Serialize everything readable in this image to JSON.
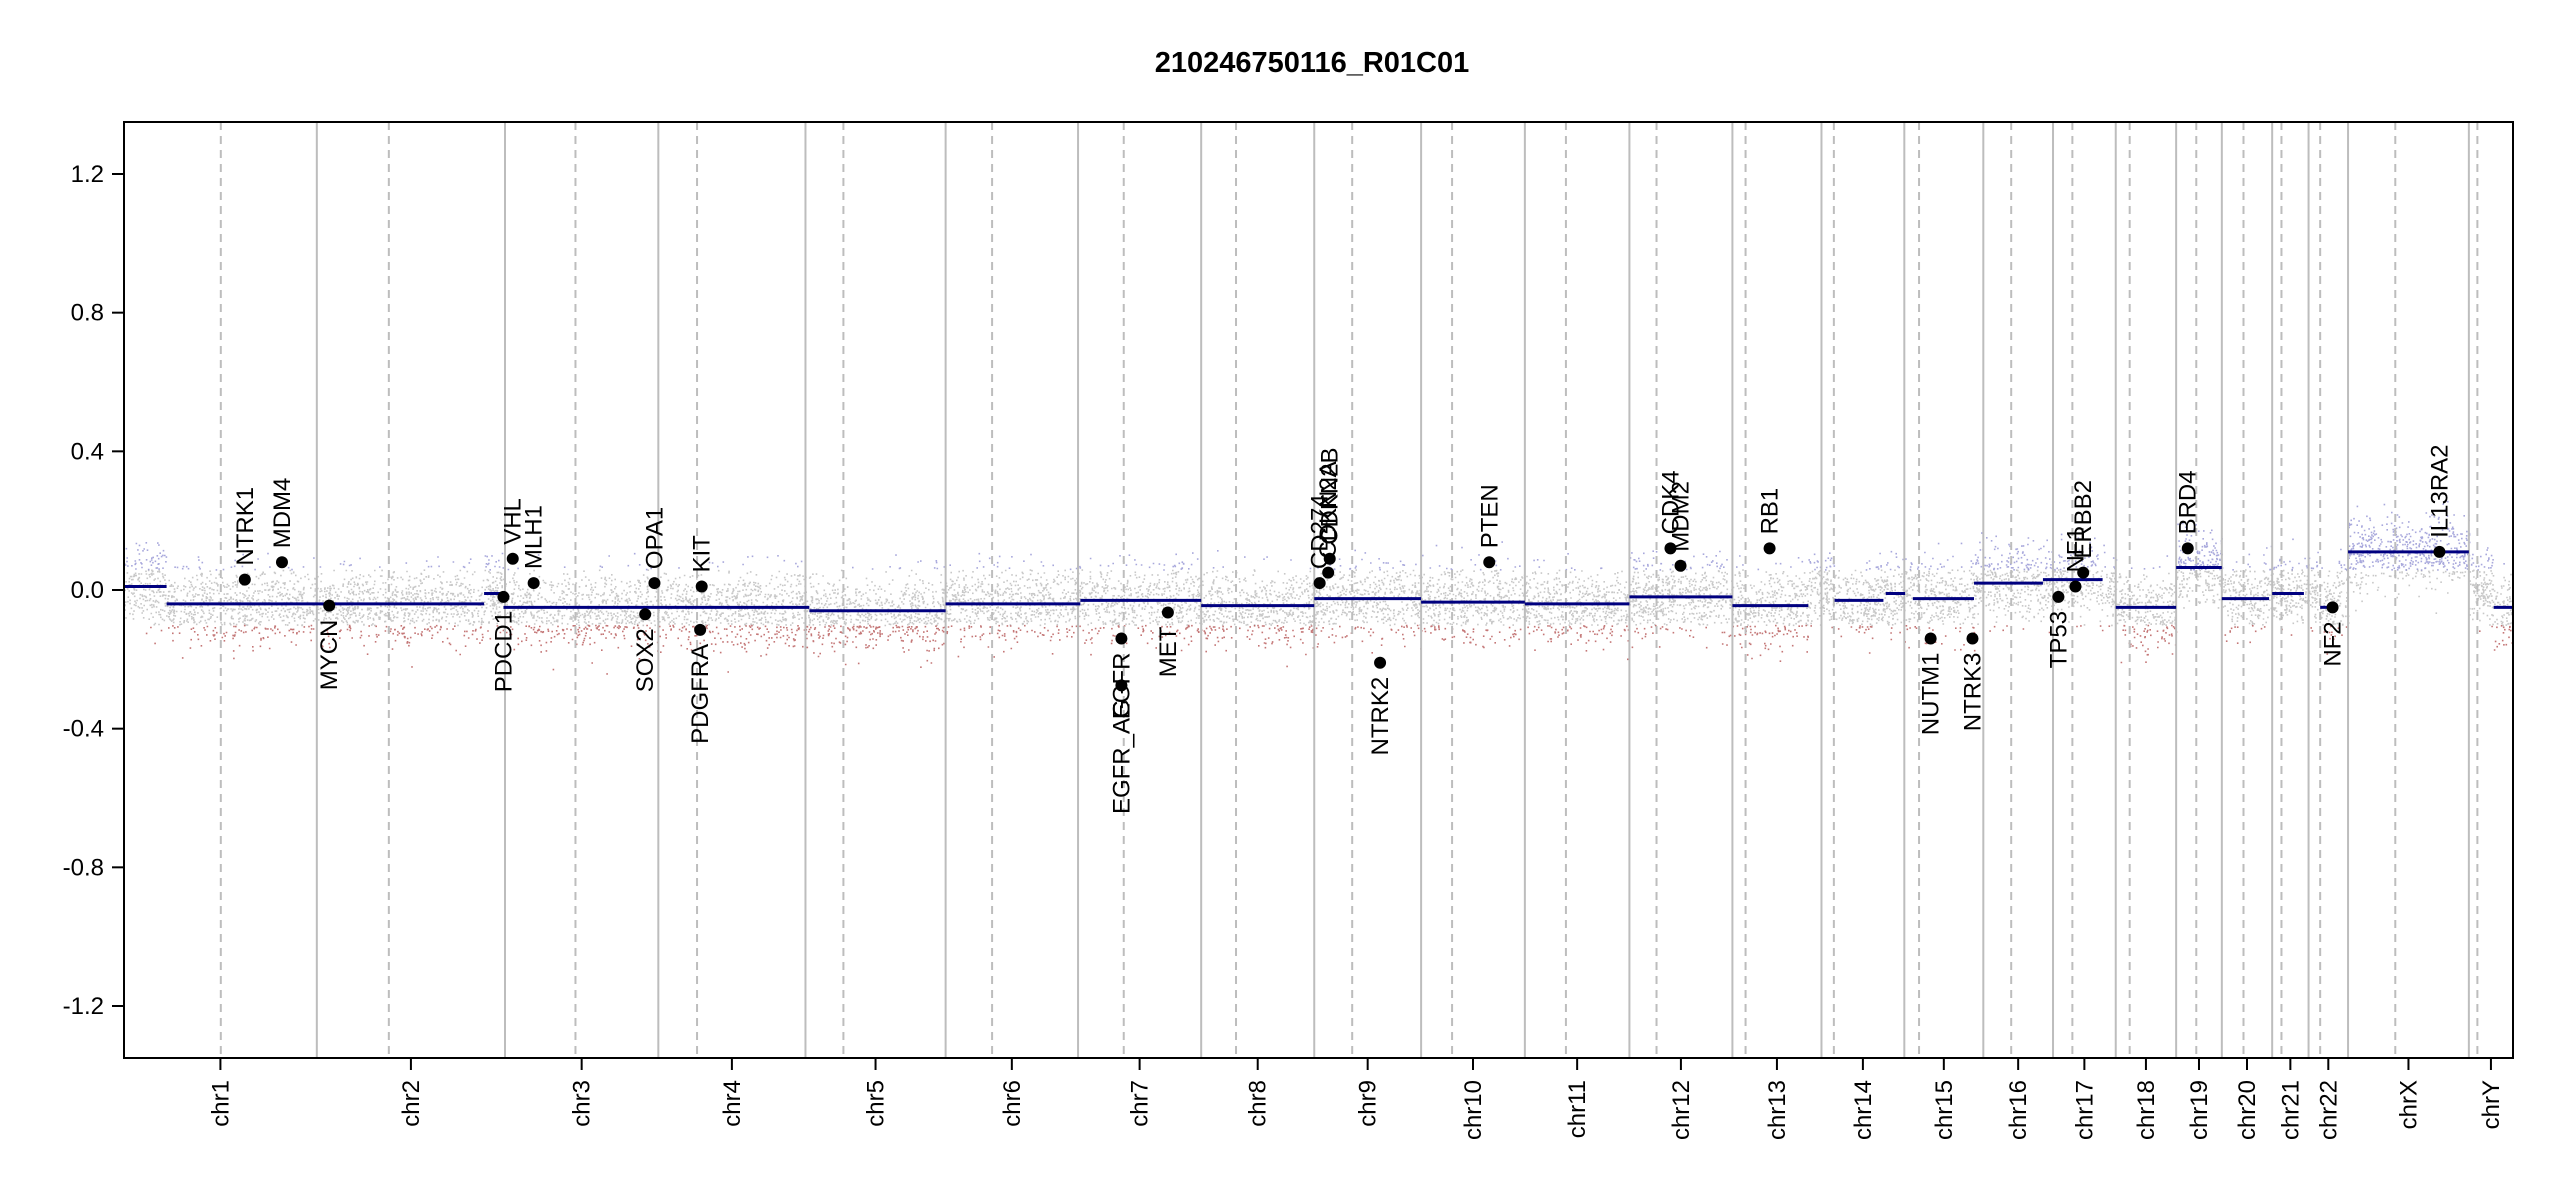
{
  "chart_data": {
    "type": "scatter",
    "title": "210246750116_R01C01",
    "xlabel": "",
    "ylabel": "",
    "ylim": [
      -1.35,
      1.35
    ],
    "yticks": [
      -1.2,
      -0.8,
      -0.4,
      0.0,
      0.4,
      0.8,
      1.2
    ],
    "ytick_labels": [
      "-1.2",
      "-0.8",
      "-0.4",
      "0.0",
      "0.4",
      "0.8",
      "1.2"
    ],
    "grid": false,
    "legend": "none",
    "x_unit": "cumulative genomic position (Mb)",
    "colors": {
      "segment": "#00007f",
      "gain_points": "#8b8bd0",
      "neutral_points": "#c8c8c8",
      "loss_points": "#b04a4a",
      "boundary": "#bdbdbd",
      "centromere": "#bdbdbd",
      "gene_point": "#000000"
    },
    "chromosomes": [
      {
        "name": "chr1",
        "start": 0,
        "end": 249,
        "centromere": 125
      },
      {
        "name": "chr2",
        "start": 249,
        "end": 492,
        "centromere": 342
      },
      {
        "name": "chr3",
        "start": 492,
        "end": 690,
        "centromere": 583
      },
      {
        "name": "chr4",
        "start": 690,
        "end": 880,
        "centromere": 740
      },
      {
        "name": "chr5",
        "start": 880,
        "end": 1061,
        "centromere": 929
      },
      {
        "name": "chr6",
        "start": 1061,
        "end": 1232,
        "centromere": 1121
      },
      {
        "name": "chr7",
        "start": 1232,
        "end": 1391,
        "centromere": 1291
      },
      {
        "name": "chr8",
        "start": 1391,
        "end": 1537,
        "centromere": 1436
      },
      {
        "name": "chr9",
        "start": 1537,
        "end": 1675,
        "centromere": 1586
      },
      {
        "name": "chr10",
        "start": 1675,
        "end": 1809,
        "centromere": 1715
      },
      {
        "name": "chr11",
        "start": 1809,
        "end": 1944,
        "centromere": 1862
      },
      {
        "name": "chr12",
        "start": 1944,
        "end": 2077,
        "centromere": 1979
      },
      {
        "name": "chr13",
        "start": 2077,
        "end": 2192,
        "centromere": 2094
      },
      {
        "name": "chr14",
        "start": 2192,
        "end": 2299,
        "centromere": 2208
      },
      {
        "name": "chr15",
        "start": 2299,
        "end": 2401,
        "centromere": 2318
      },
      {
        "name": "chr16",
        "start": 2401,
        "end": 2491,
        "centromere": 2437
      },
      {
        "name": "chr17",
        "start": 2491,
        "end": 2572,
        "centromere": 2516
      },
      {
        "name": "chr18",
        "start": 2572,
        "end": 2650,
        "centromere": 2590
      },
      {
        "name": "chr19",
        "start": 2650,
        "end": 2709,
        "centromere": 2676
      },
      {
        "name": "chr20",
        "start": 2709,
        "end": 2774,
        "centromere": 2737
      },
      {
        "name": "chr21",
        "start": 2774,
        "end": 2821,
        "centromere": 2786
      },
      {
        "name": "chr22",
        "start": 2821,
        "end": 2872,
        "centromere": 2836
      },
      {
        "name": "chrX",
        "start": 2872,
        "end": 3028,
        "centromere": 2933
      },
      {
        "name": "chrY",
        "start": 3028,
        "end": 3085,
        "centromere": 3039
      }
    ],
    "segments": [
      {
        "x0": 0,
        "x1": 55,
        "y": 0.01
      },
      {
        "x0": 55,
        "x1": 465,
        "y": -0.04
      },
      {
        "x0": 465,
        "x1": 490,
        "y": -0.01
      },
      {
        "x0": 490,
        "x1": 885,
        "y": -0.05
      },
      {
        "x0": 885,
        "x1": 1061,
        "y": -0.06
      },
      {
        "x0": 1061,
        "x1": 1235,
        "y": -0.04
      },
      {
        "x0": 1235,
        "x1": 1391,
        "y": -0.03
      },
      {
        "x0": 1391,
        "x1": 1537,
        "y": -0.045
      },
      {
        "x0": 1537,
        "x1": 1675,
        "y": -0.025
      },
      {
        "x0": 1675,
        "x1": 1809,
        "y": -0.035
      },
      {
        "x0": 1809,
        "x1": 1944,
        "y": -0.04
      },
      {
        "x0": 1944,
        "x1": 2077,
        "y": -0.02
      },
      {
        "x0": 2077,
        "x1": 2175,
        "y": -0.045
      },
      {
        "x0": 2209,
        "x1": 2272,
        "y": -0.03
      },
      {
        "x0": 2275,
        "x1": 2300,
        "y": -0.01
      },
      {
        "x0": 2310,
        "x1": 2389,
        "y": -0.025
      },
      {
        "x0": 2389,
        "x1": 2478,
        "y": 0.02
      },
      {
        "x0": 2478,
        "x1": 2555,
        "y": 0.03
      },
      {
        "x0": 2572,
        "x1": 2650,
        "y": -0.05
      },
      {
        "x0": 2650,
        "x1": 2709,
        "y": 0.065
      },
      {
        "x0": 2709,
        "x1": 2770,
        "y": -0.025
      },
      {
        "x0": 2774,
        "x1": 2815,
        "y": -0.01
      },
      {
        "x0": 2836,
        "x1": 2855,
        "y": -0.05
      },
      {
        "x0": 2872,
        "x1": 3028,
        "y": 0.11
      },
      {
        "x0": 3060,
        "x1": 3085,
        "y": -0.05
      }
    ],
    "genes": [
      {
        "name": "NTRK1",
        "x": 156,
        "y": 0.03,
        "label_pos": "above"
      },
      {
        "name": "MDM4",
        "x": 204,
        "y": 0.08,
        "label_pos": "above"
      },
      {
        "name": "MYCN",
        "x": 265,
        "y": -0.045,
        "label_pos": "below"
      },
      {
        "name": "PDCD1",
        "x": 490,
        "y": -0.02,
        "label_pos": "below"
      },
      {
        "name": "VHL",
        "x": 502,
        "y": 0.09,
        "label_pos": "above"
      },
      {
        "name": "MLH1",
        "x": 529,
        "y": 0.02,
        "label_pos": "above"
      },
      {
        "name": "SOX2",
        "x": 673,
        "y": -0.07,
        "label_pos": "below"
      },
      {
        "name": "OPA1",
        "x": 685,
        "y": 0.02,
        "label_pos": "above"
      },
      {
        "name": "KIT",
        "x": 746,
        "y": 0.01,
        "label_pos": "above"
      },
      {
        "name": "PDGFRA",
        "x": 744,
        "y": -0.115,
        "label_pos": "below"
      },
      {
        "name": "EGFR_AG",
        "x": 1288,
        "y": -0.275,
        "label_pos": "below"
      },
      {
        "name": "EGFR",
        "x": 1288,
        "y": -0.14,
        "label_pos": "below"
      },
      {
        "name": "MET",
        "x": 1348,
        "y": -0.065,
        "label_pos": "below"
      },
      {
        "name": "CD274",
        "x": 1544,
        "y": 0.02,
        "label_pos": "above"
      },
      {
        "name": "CDKN2A",
        "x": 1555,
        "y": 0.05,
        "label_pos": "above"
      },
      {
        "name": "CDKN2B",
        "x": 1557,
        "y": 0.09,
        "label_pos": "above"
      },
      {
        "name": "NTRK2",
        "x": 1622,
        "y": -0.21,
        "label_pos": "below"
      },
      {
        "name": "PTEN",
        "x": 1763,
        "y": 0.08,
        "label_pos": "above"
      },
      {
        "name": "CDK4",
        "x": 1997,
        "y": 0.12,
        "label_pos": "above"
      },
      {
        "name": "MDM2",
        "x": 2010,
        "y": 0.07,
        "label_pos": "above"
      },
      {
        "name": "RB1",
        "x": 2125,
        "y": 0.12,
        "label_pos": "above"
      },
      {
        "name": "NUTM1",
        "x": 2333,
        "y": -0.14,
        "label_pos": "below"
      },
      {
        "name": "NTRK3",
        "x": 2387,
        "y": -0.14,
        "label_pos": "below"
      },
      {
        "name": "TP53",
        "x": 2498,
        "y": -0.02,
        "label_pos": "below"
      },
      {
        "name": "NF1",
        "x": 2520,
        "y": 0.01,
        "label_pos": "above"
      },
      {
        "name": "ERBB2",
        "x": 2530,
        "y": 0.05,
        "label_pos": "above"
      },
      {
        "name": "BRD4",
        "x": 2665,
        "y": 0.12,
        "label_pos": "above"
      },
      {
        "name": "NF2",
        "x": 2852,
        "y": -0.05,
        "label_pos": "below"
      },
      {
        "name": "IL13RA2",
        "x": 2990,
        "y": 0.11,
        "label_pos": "above"
      }
    ]
  }
}
